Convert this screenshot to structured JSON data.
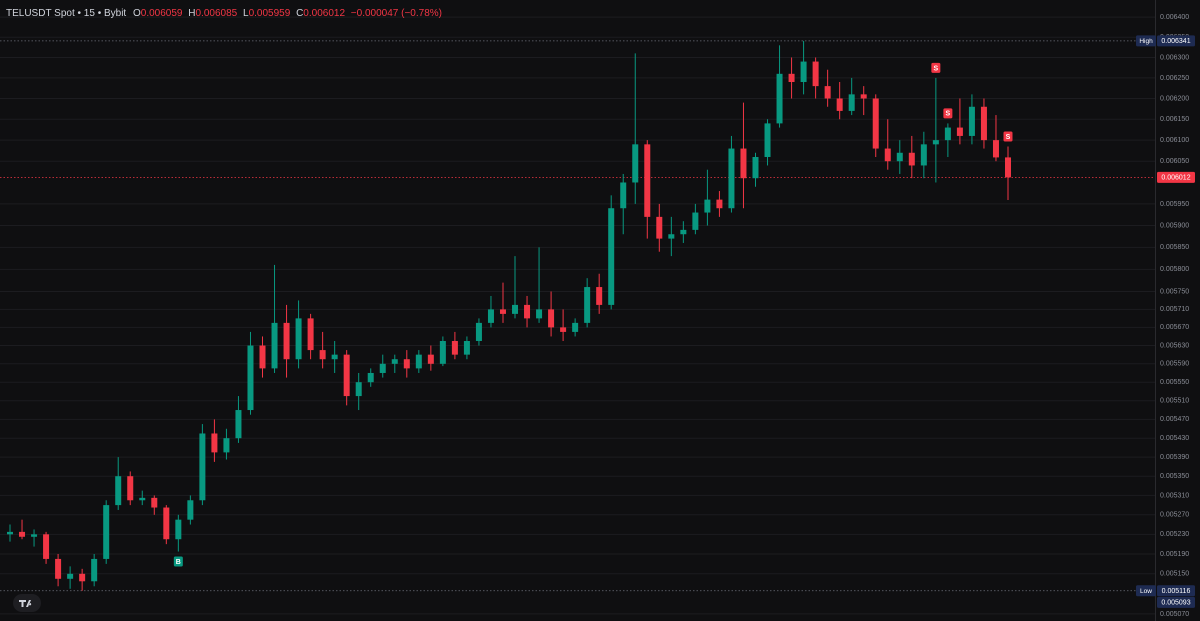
{
  "header": {
    "symbol": "TELUSDT Spot • 15 • Bybit",
    "o_label": "O",
    "open": 0.006059,
    "h_label": "H",
    "high": 0.006085,
    "l_label": "L",
    "low": 0.005959,
    "c_label": "C",
    "close": 0.006012,
    "change": "−0.000047 (−0.78%)"
  },
  "chart_data": {
    "type": "candlestick",
    "log": true,
    "grid": true,
    "up_color": "#089981",
    "down_color": "#f23645",
    "ylim": [
      0.005056,
      0.006443
    ],
    "yticks": [
      {
        "value": 0.0064,
        "label": "0.006400"
      },
      {
        "value": 0.00635,
        "label": "0.006350"
      },
      {
        "value": 0.0063,
        "label": "0.006300"
      },
      {
        "value": 0.00625,
        "label": "0.006250"
      },
      {
        "value": 0.0062,
        "label": "0.006200"
      },
      {
        "value": 0.00615,
        "label": "0.006150"
      },
      {
        "value": 0.0061,
        "label": "0.006100"
      },
      {
        "value": 0.00605,
        "label": "0.006050"
      },
      {
        "value": 0.00595,
        "label": "0.005950"
      },
      {
        "value": 0.0059,
        "label": "0.005900"
      },
      {
        "value": 0.00585,
        "label": "0.005850"
      },
      {
        "value": 0.0058,
        "label": "0.005800"
      },
      {
        "value": 0.00575,
        "label": "0.005750"
      },
      {
        "value": 0.00571,
        "label": "0.005710"
      },
      {
        "value": 0.00567,
        "label": "0.005670"
      },
      {
        "value": 0.00563,
        "label": "0.005630"
      },
      {
        "value": 0.00559,
        "label": "0.005590"
      },
      {
        "value": 0.00555,
        "label": "0.005550"
      },
      {
        "value": 0.00551,
        "label": "0.005510"
      },
      {
        "value": 0.00547,
        "label": "0.005470"
      },
      {
        "value": 0.00543,
        "label": "0.005430"
      },
      {
        "value": 0.00539,
        "label": "0.005390"
      },
      {
        "value": 0.00535,
        "label": "0.005350"
      },
      {
        "value": 0.00531,
        "label": "0.005310"
      },
      {
        "value": 0.00527,
        "label": "0.005270"
      },
      {
        "value": 0.00523,
        "label": "0.005230"
      },
      {
        "value": 0.00519,
        "label": "0.005190"
      },
      {
        "value": 0.00515,
        "label": "0.005150"
      },
      {
        "value": 0.00507,
        "label": "0.005070"
      }
    ],
    "open": [
      0.00523,
      0.005235,
      0.005225,
      0.00523,
      0.00518,
      0.00514,
      0.00515,
      0.005135,
      0.00518,
      0.00529,
      0.00535,
      0.0053,
      0.005305,
      0.005285,
      0.00522,
      0.00526,
      0.0053,
      0.00544,
      0.0054,
      0.00543,
      0.00549,
      0.00563,
      0.00558,
      0.00568,
      0.0056,
      0.00569,
      0.00562,
      0.0056,
      0.00561,
      0.00552,
      0.00555,
      0.00557,
      0.00559,
      0.0056,
      0.00558,
      0.00561,
      0.00559,
      0.00564,
      0.00561,
      0.00564,
      0.00568,
      0.00571,
      0.0057,
      0.00572,
      0.00569,
      0.00571,
      0.00567,
      0.00566,
      0.00568,
      0.00576,
      0.00572,
      0.00594,
      0.006,
      0.00609,
      0.00592,
      0.00587,
      0.00588,
      0.00589,
      0.00593,
      0.00596,
      0.00594,
      0.00608,
      0.00601,
      0.00606,
      0.00614,
      0.00626,
      0.00624,
      0.00629,
      0.00623,
      0.0062,
      0.00617,
      0.00621,
      0.0062,
      0.00608,
      0.00605,
      0.00607,
      0.00604,
      0.00609,
      0.0061,
      0.00613,
      0.00611,
      0.00618,
      0.0061,
      0.006059
    ],
    "high": [
      0.00525,
      0.00526,
      0.00524,
      0.005235,
      0.00519,
      0.005165,
      0.00516,
      0.00519,
      0.0053,
      0.00539,
      0.00536,
      0.00532,
      0.00531,
      0.00529,
      0.00527,
      0.00531,
      0.00546,
      0.00547,
      0.00545,
      0.00552,
      0.00566,
      0.00565,
      0.00581,
      0.00572,
      0.00573,
      0.0057,
      0.00566,
      0.00564,
      0.00562,
      0.00557,
      0.00558,
      0.00561,
      0.00561,
      0.00562,
      0.00562,
      0.00563,
      0.00565,
      0.00566,
      0.00565,
      0.00569,
      0.00574,
      0.00577,
      0.00583,
      0.00574,
      0.00585,
      0.00575,
      0.00571,
      0.00569,
      0.00578,
      0.00579,
      0.00597,
      0.00602,
      0.00631,
      0.0061,
      0.00595,
      0.00592,
      0.00591,
      0.00595,
      0.00603,
      0.00598,
      0.00611,
      0.00619,
      0.00607,
      0.00615,
      0.00633,
      0.0063,
      0.006341,
      0.0063,
      0.00627,
      0.00624,
      0.00625,
      0.00623,
      0.00621,
      0.00615,
      0.0061,
      0.00611,
      0.00612,
      0.00625,
      0.00614,
      0.0062,
      0.00621,
      0.0062,
      0.00616,
      0.006085
    ],
    "low": [
      0.005215,
      0.00522,
      0.005205,
      0.00517,
      0.005125,
      0.00512,
      0.005116,
      0.005125,
      0.00517,
      0.00528,
      0.00529,
      0.00529,
      0.00527,
      0.00521,
      0.005195,
      0.00525,
      0.00529,
      0.00538,
      0.005385,
      0.00542,
      0.00548,
      0.00556,
      0.00557,
      0.00556,
      0.00558,
      0.0056,
      0.00558,
      0.00557,
      0.0055,
      0.00549,
      0.00554,
      0.00556,
      0.00557,
      0.00556,
      0.00557,
      0.005575,
      0.005585,
      0.0056,
      0.0056,
      0.00563,
      0.00567,
      0.00568,
      0.00569,
      0.00567,
      0.00568,
      0.00565,
      0.00564,
      0.00565,
      0.00567,
      0.0057,
      0.00571,
      0.00588,
      0.00595,
      0.00587,
      0.00584,
      0.00583,
      0.00586,
      0.00588,
      0.0059,
      0.00592,
      0.00593,
      0.00594,
      0.00599,
      0.00604,
      0.00613,
      0.0062,
      0.00621,
      0.0062,
      0.00618,
      0.00615,
      0.00616,
      0.00616,
      0.00606,
      0.00603,
      0.00602,
      0.00601,
      0.00601,
      0.006,
      0.00606,
      0.00609,
      0.00609,
      0.00608,
      0.00605,
      0.005959
    ],
    "close": [
      0.005235,
      0.005225,
      0.00523,
      0.00518,
      0.00514,
      0.00515,
      0.005135,
      0.00518,
      0.00529,
      0.00535,
      0.0053,
      0.005305,
      0.005285,
      0.00522,
      0.00526,
      0.0053,
      0.00544,
      0.0054,
      0.00543,
      0.00549,
      0.00563,
      0.00558,
      0.00568,
      0.0056,
      0.00569,
      0.00562,
      0.0056,
      0.00561,
      0.00552,
      0.00555,
      0.00557,
      0.00559,
      0.0056,
      0.00558,
      0.00561,
      0.00559,
      0.00564,
      0.00561,
      0.00564,
      0.00568,
      0.00571,
      0.0057,
      0.00572,
      0.00569,
      0.00571,
      0.00567,
      0.00566,
      0.00568,
      0.00576,
      0.00572,
      0.00594,
      0.006,
      0.00609,
      0.00592,
      0.00587,
      0.00588,
      0.00589,
      0.00593,
      0.00596,
      0.00594,
      0.00608,
      0.00601,
      0.00606,
      0.00614,
      0.00626,
      0.00624,
      0.00629,
      0.00623,
      0.0062,
      0.00617,
      0.00621,
      0.0062,
      0.00608,
      0.00605,
      0.00607,
      0.00604,
      0.00609,
      0.0061,
      0.00613,
      0.00611,
      0.00618,
      0.0061,
      0.006059,
      0.006012
    ],
    "markers": [
      {
        "text": "B",
        "index": 14,
        "side": "below",
        "color": "#089981"
      },
      {
        "text": "S",
        "index": 77,
        "side": "above",
        "color": "#f23645"
      },
      {
        "text": "S",
        "index": 78,
        "side": "above",
        "color": "#f23645"
      },
      {
        "text": "S",
        "index": 83,
        "side": "above",
        "color": "#f23645"
      }
    ],
    "price_tags": [
      {
        "label": "High",
        "value": 0.006341,
        "color": "#1e2b52",
        "line": true
      },
      {
        "value": 0.006012,
        "color": "#f23645",
        "line": true
      },
      {
        "label": "Low",
        "value": 0.005116,
        "color": "#1e2b52",
        "line": true
      },
      {
        "value": 0.005093,
        "color": "#1e2b52",
        "line": false
      }
    ]
  }
}
